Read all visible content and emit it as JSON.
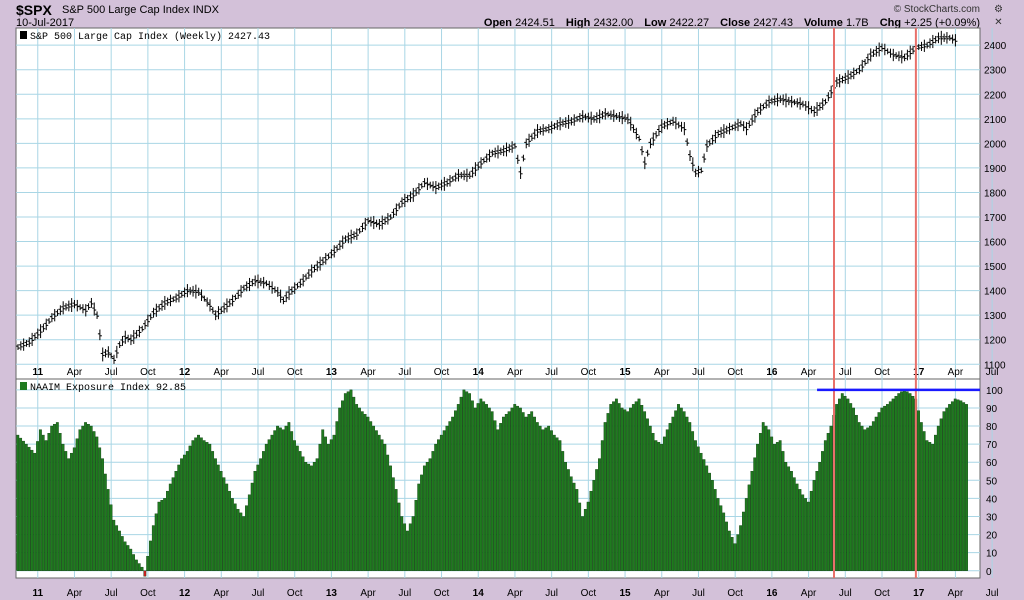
{
  "header": {
    "ticker": "$SPX",
    "name": "S&P 500 Large Cap Index",
    "exchange": "INDX",
    "date": "10-Jul-2017",
    "brand": "© StockCharts.com",
    "open_label": "Open",
    "open": "2424.51",
    "high_label": "High",
    "high": "2432.00",
    "low_label": "Low",
    "low": "2422.27",
    "close_label": "Close",
    "close": "2427.43",
    "volume_label": "Volume",
    "volume": "1.7B",
    "chg_label": "Chg",
    "chg": "+2.25 (+0.09%)",
    "icons": [
      "settings-icon",
      "close-icon"
    ]
  },
  "colors": {
    "page_bg": "#d3c1d9",
    "panel_bg": "#ffffff",
    "grid": "#a9d6e5",
    "price_bar": "#000000",
    "volume_bar": "#1f7a1f",
    "negative_bar": "#cc2222",
    "marker_line": "#e8706a",
    "threshold_line": "#1a1aff"
  },
  "chart_data": [
    {
      "type": "line",
      "title": "S&P 500 Large Cap Index (Weekly) 2427.43",
      "x_tick_labels": [
        "11",
        "Apr",
        "Jul",
        "Oct",
        "12",
        "Apr",
        "Jul",
        "Oct",
        "13",
        "Apr",
        "Jul",
        "Oct",
        "14",
        "Apr",
        "Jul",
        "Oct",
        "15",
        "Apr",
        "Jul",
        "Oct",
        "16",
        "Apr",
        "Jul",
        "Oct",
        "17",
        "Apr",
        "Jul"
      ],
      "y_ticks": [
        1100,
        1200,
        1300,
        1400,
        1500,
        1600,
        1700,
        1800,
        1900,
        2000,
        2100,
        2200,
        2300,
        2400
      ],
      "ylim": [
        1040,
        2470
      ],
      "x_range_weeks": [
        0,
        340
      ],
      "grid": true,
      "series": [
        {
          "values": [
            [
              0,
              1170
            ],
            [
              4,
              1190
            ],
            [
              8,
              1235
            ],
            [
              12,
              1290
            ],
            [
              16,
              1330
            ],
            [
              20,
              1345
            ],
            [
              24,
              1320
            ],
            [
              26,
              1350
            ],
            [
              28,
              1300
            ],
            [
              30,
              1140
            ],
            [
              32,
              1150
            ],
            [
              34,
              1120
            ],
            [
              36,
              1180
            ],
            [
              38,
              1210
            ],
            [
              40,
              1200
            ],
            [
              44,
              1245
            ],
            [
              48,
              1310
            ],
            [
              52,
              1350
            ],
            [
              56,
              1370
            ],
            [
              60,
              1400
            ],
            [
              64,
              1395
            ],
            [
              68,
              1340
            ],
            [
              70,
              1300
            ],
            [
              72,
              1320
            ],
            [
              76,
              1360
            ],
            [
              80,
              1410
            ],
            [
              84,
              1440
            ],
            [
              88,
              1430
            ],
            [
              92,
              1395
            ],
            [
              94,
              1360
            ],
            [
              96,
              1390
            ],
            [
              100,
              1430
            ],
            [
              104,
              1480
            ],
            [
              108,
              1520
            ],
            [
              112,
              1560
            ],
            [
              116,
              1610
            ],
            [
              120,
              1630
            ],
            [
              124,
              1685
            ],
            [
              128,
              1670
            ],
            [
              132,
              1700
            ],
            [
              136,
              1760
            ],
            [
              140,
              1790
            ],
            [
              144,
              1840
            ],
            [
              148,
              1820
            ],
            [
              152,
              1840
            ],
            [
              156,
              1870
            ],
            [
              160,
              1870
            ],
            [
              164,
              1920
            ],
            [
              168,
              1960
            ],
            [
              172,
              1970
            ],
            [
              176,
              1990
            ],
            [
              178,
              1880
            ],
            [
              180,
              2000
            ],
            [
              184,
              2050
            ],
            [
              188,
              2060
            ],
            [
              192,
              2080
            ],
            [
              196,
              2090
            ],
            [
              200,
              2110
            ],
            [
              204,
              2100
            ],
            [
              208,
              2120
            ],
            [
              212,
              2110
            ],
            [
              216,
              2100
            ],
            [
              220,
              2020
            ],
            [
              222,
              1920
            ],
            [
              224,
              2000
            ],
            [
              228,
              2070
            ],
            [
              232,
              2090
            ],
            [
              236,
              2060
            ],
            [
              238,
              1950
            ],
            [
              240,
              1880
            ],
            [
              242,
              1890
            ],
            [
              244,
              1990
            ],
            [
              248,
              2040
            ],
            [
              252,
              2060
            ],
            [
              256,
              2080
            ],
            [
              258,
              2060
            ],
            [
              262,
              2130
            ],
            [
              266,
              2170
            ],
            [
              270,
              2180
            ],
            [
              274,
              2170
            ],
            [
              278,
              2160
            ],
            [
              282,
              2130
            ],
            [
              286,
              2170
            ],
            [
              290,
              2250
            ],
            [
              294,
              2270
            ],
            [
              298,
              2300
            ],
            [
              302,
              2360
            ],
            [
              306,
              2390
            ],
            [
              310,
              2360
            ],
            [
              314,
              2350
            ],
            [
              318,
              2390
            ],
            [
              322,
              2400
            ],
            [
              326,
              2430
            ],
            [
              330,
              2430
            ],
            [
              332,
              2420
            ]
          ]
        }
      ],
      "markers_x": [
        289,
        318
      ]
    },
    {
      "type": "bar",
      "title": "NAAIM Exposure Index 92.85",
      "y_ticks": [
        0,
        10,
        20,
        30,
        40,
        50,
        60,
        70,
        80,
        90,
        100
      ],
      "ylim": [
        -4,
        106
      ],
      "threshold": 100,
      "threshold_x_range": [
        283,
        340
      ],
      "x_range_weeks": [
        0,
        340
      ],
      "values_keyframes": [
        [
          0,
          75
        ],
        [
          3,
          70
        ],
        [
          6,
          65
        ],
        [
          8,
          78
        ],
        [
          10,
          72
        ],
        [
          12,
          80
        ],
        [
          14,
          82
        ],
        [
          16,
          70
        ],
        [
          18,
          62
        ],
        [
          20,
          68
        ],
        [
          22,
          78
        ],
        [
          24,
          82
        ],
        [
          26,
          80
        ],
        [
          28,
          74
        ],
        [
          30,
          62
        ],
        [
          32,
          45
        ],
        [
          34,
          28
        ],
        [
          36,
          22
        ],
        [
          38,
          16
        ],
        [
          40,
          12
        ],
        [
          42,
          6
        ],
        [
          44,
          2
        ],
        [
          45,
          -3
        ],
        [
          46,
          8
        ],
        [
          48,
          25
        ],
        [
          50,
          38
        ],
        [
          52,
          40
        ],
        [
          54,
          48
        ],
        [
          56,
          55
        ],
        [
          58,
          62
        ],
        [
          60,
          66
        ],
        [
          62,
          72
        ],
        [
          64,
          75
        ],
        [
          66,
          72
        ],
        [
          68,
          70
        ],
        [
          70,
          62
        ],
        [
          72,
          55
        ],
        [
          74,
          48
        ],
        [
          76,
          40
        ],
        [
          78,
          34
        ],
        [
          80,
          30
        ],
        [
          82,
          42
        ],
        [
          84,
          55
        ],
        [
          86,
          62
        ],
        [
          88,
          70
        ],
        [
          90,
          75
        ],
        [
          92,
          80
        ],
        [
          94,
          78
        ],
        [
          96,
          82
        ],
        [
          98,
          72
        ],
        [
          100,
          66
        ],
        [
          102,
          60
        ],
        [
          104,
          58
        ],
        [
          106,
          62
        ],
        [
          108,
          78
        ],
        [
          110,
          70
        ],
        [
          112,
          75
        ],
        [
          114,
          90
        ],
        [
          116,
          98
        ],
        [
          118,
          100
        ],
        [
          120,
          92
        ],
        [
          122,
          88
        ],
        [
          124,
          85
        ],
        [
          126,
          80
        ],
        [
          128,
          75
        ],
        [
          130,
          70
        ],
        [
          132,
          58
        ],
        [
          134,
          45
        ],
        [
          136,
          30
        ],
        [
          138,
          22
        ],
        [
          140,
          30
        ],
        [
          142,
          48
        ],
        [
          144,
          58
        ],
        [
          146,
          62
        ],
        [
          148,
          70
        ],
        [
          150,
          75
        ],
        [
          152,
          80
        ],
        [
          154,
          85
        ],
        [
          156,
          92
        ],
        [
          158,
          100
        ],
        [
          160,
          98
        ],
        [
          162,
          90
        ],
        [
          164,
          95
        ],
        [
          166,
          92
        ],
        [
          168,
          88
        ],
        [
          170,
          78
        ],
        [
          172,
          85
        ],
        [
          174,
          88
        ],
        [
          176,
          92
        ],
        [
          178,
          90
        ],
        [
          180,
          85
        ],
        [
          182,
          88
        ],
        [
          184,
          82
        ],
        [
          186,
          78
        ],
        [
          188,
          80
        ],
        [
          190,
          75
        ],
        [
          192,
          72
        ],
        [
          194,
          60
        ],
        [
          196,
          52
        ],
        [
          198,
          45
        ],
        [
          200,
          30
        ],
        [
          202,
          38
        ],
        [
          204,
          50
        ],
        [
          206,
          62
        ],
        [
          208,
          82
        ],
        [
          210,
          92
        ],
        [
          212,
          95
        ],
        [
          214,
          90
        ],
        [
          216,
          88
        ],
        [
          218,
          92
        ],
        [
          220,
          95
        ],
        [
          222,
          88
        ],
        [
          224,
          80
        ],
        [
          226,
          72
        ],
        [
          228,
          70
        ],
        [
          230,
          78
        ],
        [
          232,
          85
        ],
        [
          234,
          92
        ],
        [
          236,
          88
        ],
        [
          238,
          82
        ],
        [
          240,
          72
        ],
        [
          242,
          65
        ],
        [
          244,
          58
        ],
        [
          246,
          50
        ],
        [
          248,
          40
        ],
        [
          250,
          32
        ],
        [
          252,
          22
        ],
        [
          254,
          15
        ],
        [
          256,
          25
        ],
        [
          258,
          40
        ],
        [
          260,
          55
        ],
        [
          262,
          70
        ],
        [
          264,
          82
        ],
        [
          266,
          78
        ],
        [
          268,
          70
        ],
        [
          270,
          72
        ],
        [
          272,
          60
        ],
        [
          274,
          55
        ],
        [
          276,
          48
        ],
        [
          278,
          42
        ],
        [
          280,
          38
        ],
        [
          282,
          50
        ],
        [
          284,
          60
        ],
        [
          286,
          72
        ],
        [
          288,
          80
        ],
        [
          290,
          92
        ],
        [
          292,
          98
        ],
        [
          294,
          95
        ],
        [
          296,
          90
        ],
        [
          298,
          82
        ],
        [
          300,
          78
        ],
        [
          302,
          80
        ],
        [
          304,
          85
        ],
        [
          306,
          90
        ],
        [
          308,
          92
        ],
        [
          310,
          95
        ],
        [
          312,
          98
        ],
        [
          314,
          100
        ],
        [
          316,
          98
        ],
        [
          318,
          95
        ],
        [
          320,
          82
        ],
        [
          322,
          72
        ],
        [
          324,
          70
        ],
        [
          326,
          80
        ],
        [
          328,
          88
        ],
        [
          330,
          92
        ],
        [
          332,
          95
        ],
        [
          334,
          94
        ],
        [
          336,
          92
        ]
      ],
      "markers_x": [
        289,
        318
      ]
    }
  ]
}
